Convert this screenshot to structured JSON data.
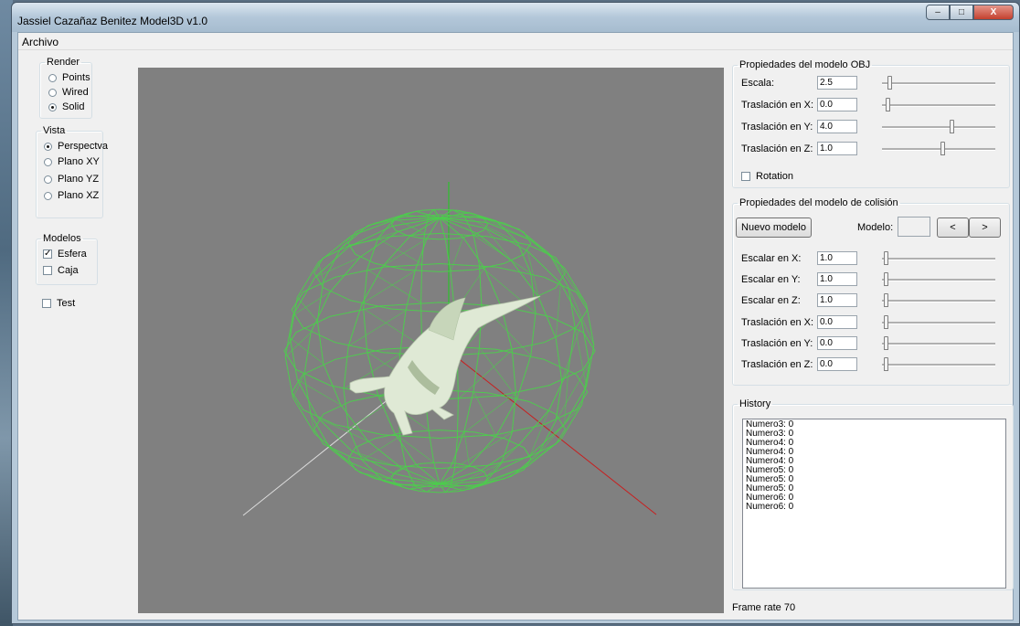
{
  "window": {
    "title": "Jassiel Cazañaz Benitez Model3D v1.0",
    "min_label": "–",
    "max_label": "□",
    "close_label": "X"
  },
  "menu": {
    "file": "Archivo"
  },
  "render": {
    "legend": "Render",
    "options": [
      {
        "label": "Points",
        "selected": false
      },
      {
        "label": "Wired",
        "selected": false
      },
      {
        "label": "Solid",
        "selected": true
      }
    ]
  },
  "vista": {
    "legend": "Vista",
    "options": [
      {
        "label": "Perspectva",
        "selected": true
      },
      {
        "label": "Plano XY",
        "selected": false
      },
      {
        "label": "Plano YZ",
        "selected": false
      },
      {
        "label": "Plano XZ",
        "selected": false
      }
    ]
  },
  "modelos": {
    "legend": "Modelos",
    "options": [
      {
        "label": "Esfera",
        "checked": true
      },
      {
        "label": "Caja",
        "checked": false
      }
    ]
  },
  "test": {
    "label": "Test",
    "checked": false
  },
  "obj_props": {
    "legend": "Propiedades del modelo OBJ",
    "rows": [
      {
        "label": "Escala:",
        "value": "2.5",
        "slider": 0.05
      },
      {
        "label": "Traslación en X:",
        "value": "0.0",
        "slider": 0.03
      },
      {
        "label": "Traslación en Y:",
        "value": "4.0",
        "slider": 0.62
      },
      {
        "label": "Traslación en Z:",
        "value": "1.0",
        "slider": 0.54
      }
    ],
    "rotation": {
      "label": "Rotation",
      "checked": false
    }
  },
  "collision_props": {
    "legend": "Propiedades del modelo de colisión",
    "new_model_button": "Nuevo modelo",
    "model_label": "Modelo:",
    "model_value": "",
    "prev_button": "<",
    "next_button": ">",
    "rows": [
      {
        "label": "Escalar en X:",
        "value": "1.0",
        "slider": 0.02
      },
      {
        "label": "Escalar en Y:",
        "value": "1.0",
        "slider": 0.02
      },
      {
        "label": "Escalar en Z:",
        "value": "1.0",
        "slider": 0.02
      },
      {
        "label": "Traslación en X:",
        "value": "0.0",
        "slider": 0.02
      },
      {
        "label": "Traslación en Y:",
        "value": "0.0",
        "slider": 0.02
      },
      {
        "label": "Traslación en Z:",
        "value": "0.0",
        "slider": 0.02
      }
    ]
  },
  "history": {
    "legend": "History",
    "items": [
      "Numero3: 0",
      "Numero3: 0",
      "Numero4: 0",
      "Numero4: 0",
      "Numero4: 0",
      "Numero5: 0",
      "Numero5: 0",
      "Numero5: 0",
      "Numero6: 0",
      "Numero6: 0"
    ]
  },
  "status": {
    "frame_rate": "Frame rate 70"
  },
  "colors": {
    "viewport_bg": "#808080",
    "sphere_wire": "#4ccd4c",
    "axis_x": "#c81e1e",
    "axis_y": "#38b838",
    "axis_z": "#dcdcdc",
    "model": "#dfe9d5"
  }
}
